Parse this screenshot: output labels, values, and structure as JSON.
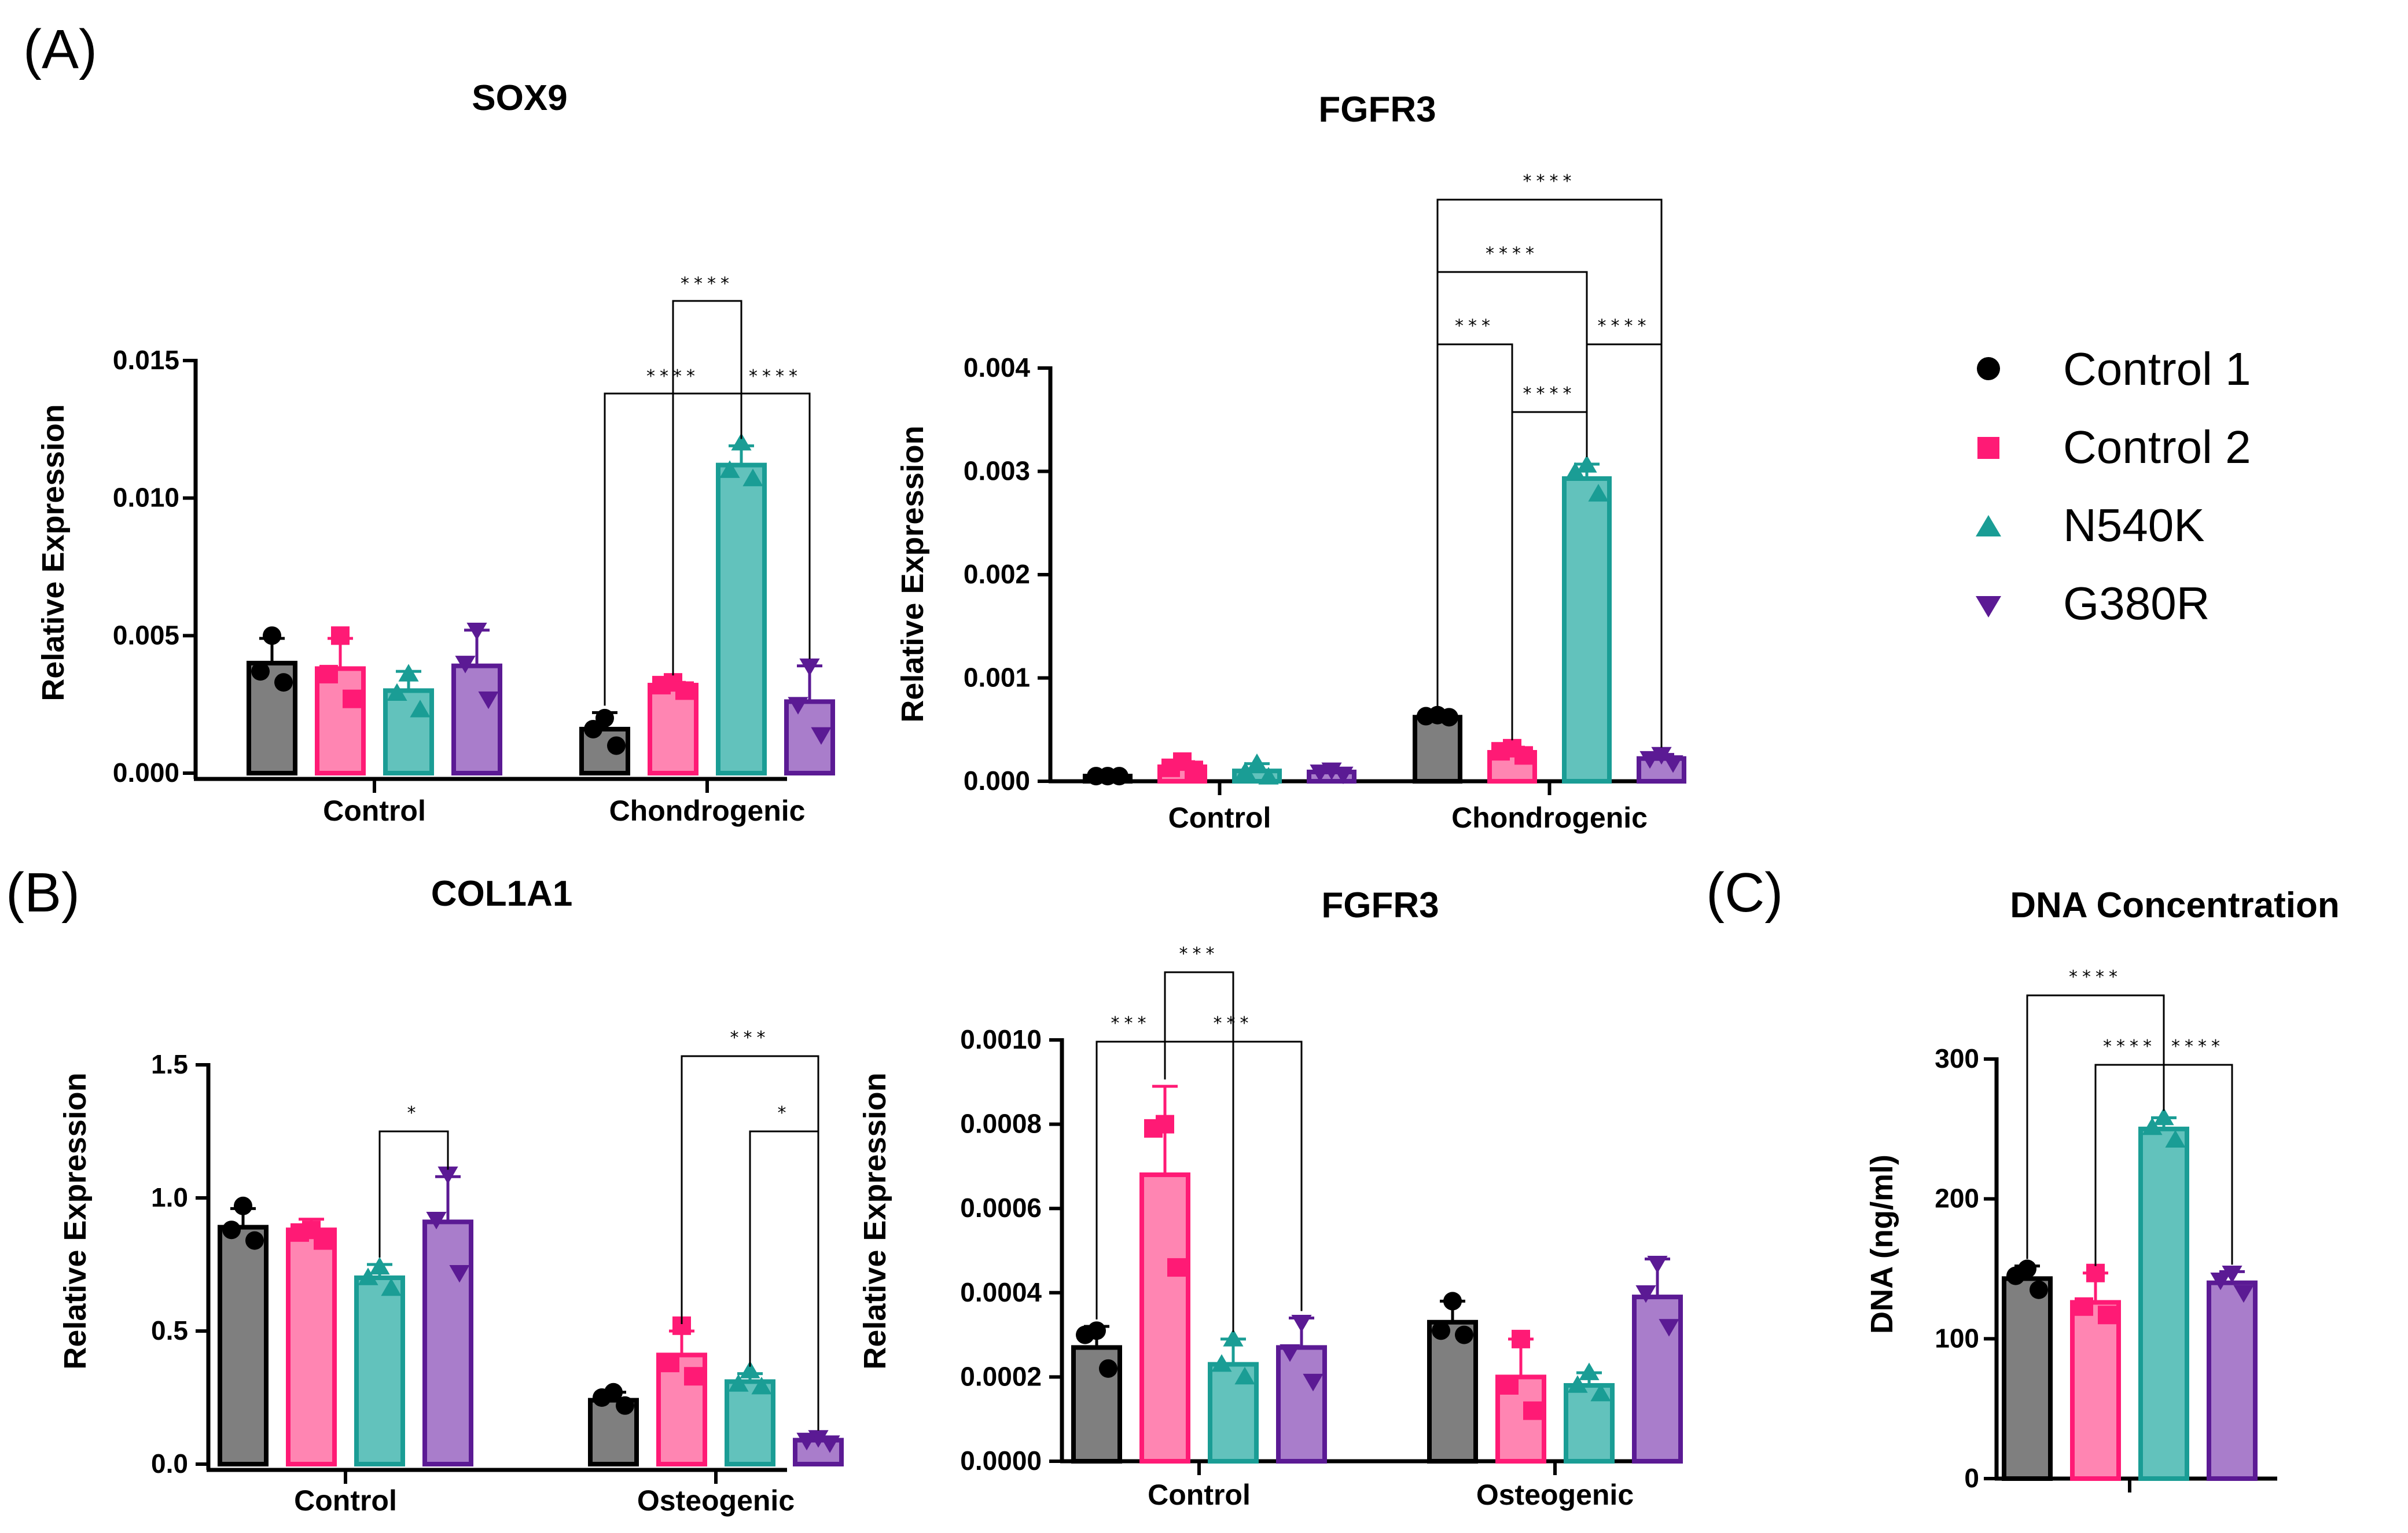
{
  "figure": {
    "legend": [
      {
        "name": "Control 1",
        "color": "#000000",
        "marker": "circle"
      },
      {
        "name": "Control 2",
        "color": "#ff1a75",
        "marker": "square"
      },
      {
        "name": "N540K",
        "color": "#1a9d95",
        "marker": "triangle-up"
      },
      {
        "name": "G380R",
        "color": "#5b1a94",
        "marker": "triangle-down"
      }
    ],
    "panel_labels": [
      "(A)",
      "(B)",
      "(C)"
    ],
    "series_style": [
      {
        "fill": "#7f7f7f",
        "edge": "#000000",
        "marker": "#000000",
        "shape": "circle"
      },
      {
        "fill": "#ff85b2",
        "edge": "#ff1a75",
        "marker": "#ff1a75",
        "shape": "square"
      },
      {
        "fill": "#62c2bc",
        "edge": "#1a9d95",
        "marker": "#1a9d95",
        "shape": "triangle-up"
      },
      {
        "fill": "#a97dcb",
        "edge": "#5b1a94",
        "marker": "#5b1a94",
        "shape": "triangle-down"
      }
    ]
  },
  "chart_data": [
    {
      "id": "A-SOX9",
      "type": "bar",
      "title": "SOX9",
      "ylabel": "Relative Expression",
      "ylim": [
        0,
        0.015
      ],
      "yticks": [
        "0.000",
        "0.005",
        "0.010",
        "0.015"
      ],
      "categories": [
        "Control",
        "Chondrogenic"
      ],
      "series": [
        {
          "name": "Control 1",
          "values": [
            0.004,
            0.0016
          ],
          "err": [
            0.0009,
            0.0006
          ],
          "points": [
            [
              0.005,
              0.0037,
              0.0033
            ],
            [
              0.002,
              0.0016,
              0.001
            ]
          ]
        },
        {
          "name": "Control 2",
          "values": [
            0.0038,
            0.0032
          ],
          "err": [
            0.0011,
            0.0001
          ],
          "points": [
            [
              0.005,
              0.0036,
              0.0027
            ],
            [
              0.0033,
              0.0032,
              0.003
            ]
          ]
        },
        {
          "name": "N540K",
          "values": [
            0.003,
            0.0112
          ],
          "err": [
            0.0007,
            0.0007
          ],
          "points": [
            [
              0.0036,
              0.0029,
              0.0023
            ],
            [
              0.012,
              0.011,
              0.0107
            ]
          ]
        },
        {
          "name": "G380R",
          "values": [
            0.0039,
            0.0026
          ],
          "err": [
            0.0013,
            0.0013
          ],
          "points": [
            [
              0.0052,
              0.004,
              0.0027
            ],
            [
              0.0039,
              0.0025,
              0.0014
            ]
          ]
        }
      ],
      "significance": [
        {
          "from": [
            1,
            2
          ],
          "to": [
            1,
            1
          ],
          "label": "****"
        },
        {
          "from": [
            1,
            2
          ],
          "to": [
            1,
            0
          ],
          "label": "****"
        },
        {
          "from": [
            1,
            2
          ],
          "to": [
            1,
            3
          ],
          "label": "****"
        }
      ]
    },
    {
      "id": "A-FGFR3",
      "type": "bar",
      "title": "FGFR3",
      "ylabel": "Relative Expression",
      "ylim": [
        0,
        0.004
      ],
      "yticks": [
        "0.000",
        "0.001",
        "0.002",
        "0.003",
        "0.004"
      ],
      "categories": [
        "Control",
        "Chondrogenic"
      ],
      "series": [
        {
          "name": "Control 1",
          "values": [
            5e-05,
            0.00062
          ],
          "err": [
            1e-05,
            2e-05
          ],
          "points": [
            [
              5e-05,
              5e-05,
              5e-05
            ],
            [
              0.00064,
              0.00063,
              0.00062
            ]
          ]
        },
        {
          "name": "Control 2",
          "values": [
            0.00014,
            0.00028
          ],
          "err": [
            5e-05,
            5e-05
          ],
          "points": [
            [
              0.00019,
              0.00013,
              0.00011
            ],
            [
              0.00032,
              0.00029,
              0.00025
            ]
          ]
        },
        {
          "name": "N540K",
          "values": [
            0.0001,
            0.00293
          ],
          "err": [
            7e-05,
            0.00014
          ],
          "points": [
            [
              0.00017,
              9e-05,
              4e-05
            ],
            [
              0.00306,
              0.00299,
              0.00278
            ]
          ]
        },
        {
          "name": "G380R",
          "values": [
            9e-05,
            0.00022
          ],
          "err": [
            3e-05,
            4e-05
          ],
          "points": [
            [
              0.00011,
              9e-05,
              7e-05
            ],
            [
              0.00026,
              0.00022,
              0.00018
            ]
          ]
        }
      ],
      "significance": [
        {
          "from": [
            1,
            0
          ],
          "to": [
            1,
            3
          ],
          "label": "****"
        },
        {
          "from": [
            1,
            0
          ],
          "to": [
            1,
            2
          ],
          "label": "****"
        },
        {
          "from": [
            1,
            0
          ],
          "to": [
            1,
            1
          ],
          "label": "***"
        },
        {
          "from": [
            1,
            2
          ],
          "to": [
            1,
            3
          ],
          "label": "****"
        },
        {
          "from": [
            1,
            1
          ],
          "to": [
            1,
            2
          ],
          "label": "****"
        }
      ]
    },
    {
      "id": "B-COL1A1",
      "type": "bar",
      "title": "COL1A1",
      "ylabel": "Relative Expression",
      "ylim": [
        0,
        1.5
      ],
      "yticks": [
        "0.0",
        "0.5",
        "1.0",
        "1.5"
      ],
      "categories": [
        "Control",
        "Osteogenic"
      ],
      "series": [
        {
          "name": "Control 1",
          "values": [
            0.89,
            0.24
          ],
          "err": [
            0.07,
            0.03
          ],
          "points": [
            [
              0.97,
              0.88,
              0.84
            ],
            [
              0.27,
              0.25,
              0.22
            ]
          ]
        },
        {
          "name": "Control 2",
          "values": [
            0.88,
            0.41
          ],
          "err": [
            0.04,
            0.09
          ],
          "points": [
            [
              0.88,
              0.87,
              0.84
            ],
            [
              0.52,
              0.38,
              0.33
            ]
          ]
        },
        {
          "name": "N540K",
          "values": [
            0.7,
            0.31
          ],
          "err": [
            0.05,
            0.03
          ],
          "points": [
            [
              0.74,
              0.7,
              0.66
            ],
            [
              0.35,
              0.3,
              0.29
            ]
          ]
        },
        {
          "name": "G380R",
          "values": [
            0.91,
            0.09
          ],
          "err": [
            0.17,
            0.01
          ],
          "points": [
            [
              1.09,
              0.92,
              0.72
            ],
            [
              0.1,
              0.09,
              0.08
            ]
          ]
        }
      ],
      "significance": [
        {
          "from": [
            0,
            2
          ],
          "to": [
            0,
            3
          ],
          "label": "*"
        },
        {
          "from": [
            1,
            2
          ],
          "to": [
            1,
            3
          ],
          "label": "*"
        },
        {
          "from": [
            1,
            1
          ],
          "to": [
            1,
            3
          ],
          "label": "***"
        }
      ]
    },
    {
      "id": "B-FGFR3",
      "type": "bar",
      "title": "FGFR3",
      "ylabel": "Relative Expression",
      "ylim": [
        0,
        0.001
      ],
      "yticks": [
        "0.0000",
        "0.0002",
        "0.0004",
        "0.0006",
        "0.0008",
        "0.0010"
      ],
      "categories": [
        "Control",
        "Osteogenic"
      ],
      "series": [
        {
          "name": "Control 1",
          "values": [
            0.00027,
            0.00033
          ],
          "err": [
            5e-05,
            5e-05
          ],
          "points": [
            [
              0.00031,
              0.0003,
              0.00022
            ],
            [
              0.00038,
              0.00031,
              0.0003
            ]
          ]
        },
        {
          "name": "Control 2",
          "values": [
            0.00068,
            0.0002
          ],
          "err": [
            0.00021,
            9e-05
          ],
          "points": [
            [
              0.0008,
              0.00079,
              0.00046
            ],
            [
              0.00029,
              0.00018,
              0.00012
            ]
          ]
        },
        {
          "name": "N540K",
          "values": [
            0.00023,
            0.00018
          ],
          "err": [
            6e-05,
            3e-05
          ],
          "points": [
            [
              0.00029,
              0.00023,
              0.0002
            ],
            [
              0.00021,
              0.00018,
              0.00016
            ]
          ]
        },
        {
          "name": "G380R",
          "values": [
            0.00027,
            0.00039
          ],
          "err": [
            7e-05,
            9e-05
          ],
          "points": [
            [
              0.00033,
              0.00026,
              0.00019
            ],
            [
              0.00047,
              0.0004,
              0.00032
            ]
          ]
        }
      ],
      "significance": [
        {
          "from": [
            0,
            1
          ],
          "to": [
            0,
            0
          ],
          "label": "***"
        },
        {
          "from": [
            0,
            1
          ],
          "to": [
            0,
            2
          ],
          "label": "***"
        },
        {
          "from": [
            0,
            1
          ],
          "to": [
            0,
            3
          ],
          "label": "***"
        }
      ]
    },
    {
      "id": "C-DNA",
      "type": "bar",
      "title": "DNA Concentration",
      "ylabel": "DNA (ng/ml)",
      "ylim": [
        0,
        300
      ],
      "yticks": [
        "0",
        "100",
        "200",
        "300"
      ],
      "categories": [
        ""
      ],
      "series": [
        {
          "name": "Control 1",
          "values": [
            143
          ],
          "err": [
            9
          ],
          "points": [
            [
              150,
              145,
              135
            ]
          ]
        },
        {
          "name": "Control 2",
          "values": [
            126
          ],
          "err": [
            21
          ],
          "points": [
            [
              147,
              123,
              117
            ]
          ]
        },
        {
          "name": "N540K",
          "values": [
            250
          ],
          "err": [
            8
          ],
          "points": [
            [
              258,
              251,
              242
            ]
          ]
        },
        {
          "name": "G380R",
          "values": [
            140
          ],
          "err": [
            8
          ],
          "points": [
            [
              147,
              142,
              133
            ]
          ]
        }
      ],
      "significance": [
        {
          "from": [
            0,
            2
          ],
          "to": [
            0,
            1
          ],
          "label": "****"
        },
        {
          "from": [
            0,
            2
          ],
          "to": [
            0,
            0
          ],
          "label": "****"
        },
        {
          "from": [
            0,
            2
          ],
          "to": [
            0,
            3
          ],
          "label": "****"
        }
      ]
    }
  ]
}
